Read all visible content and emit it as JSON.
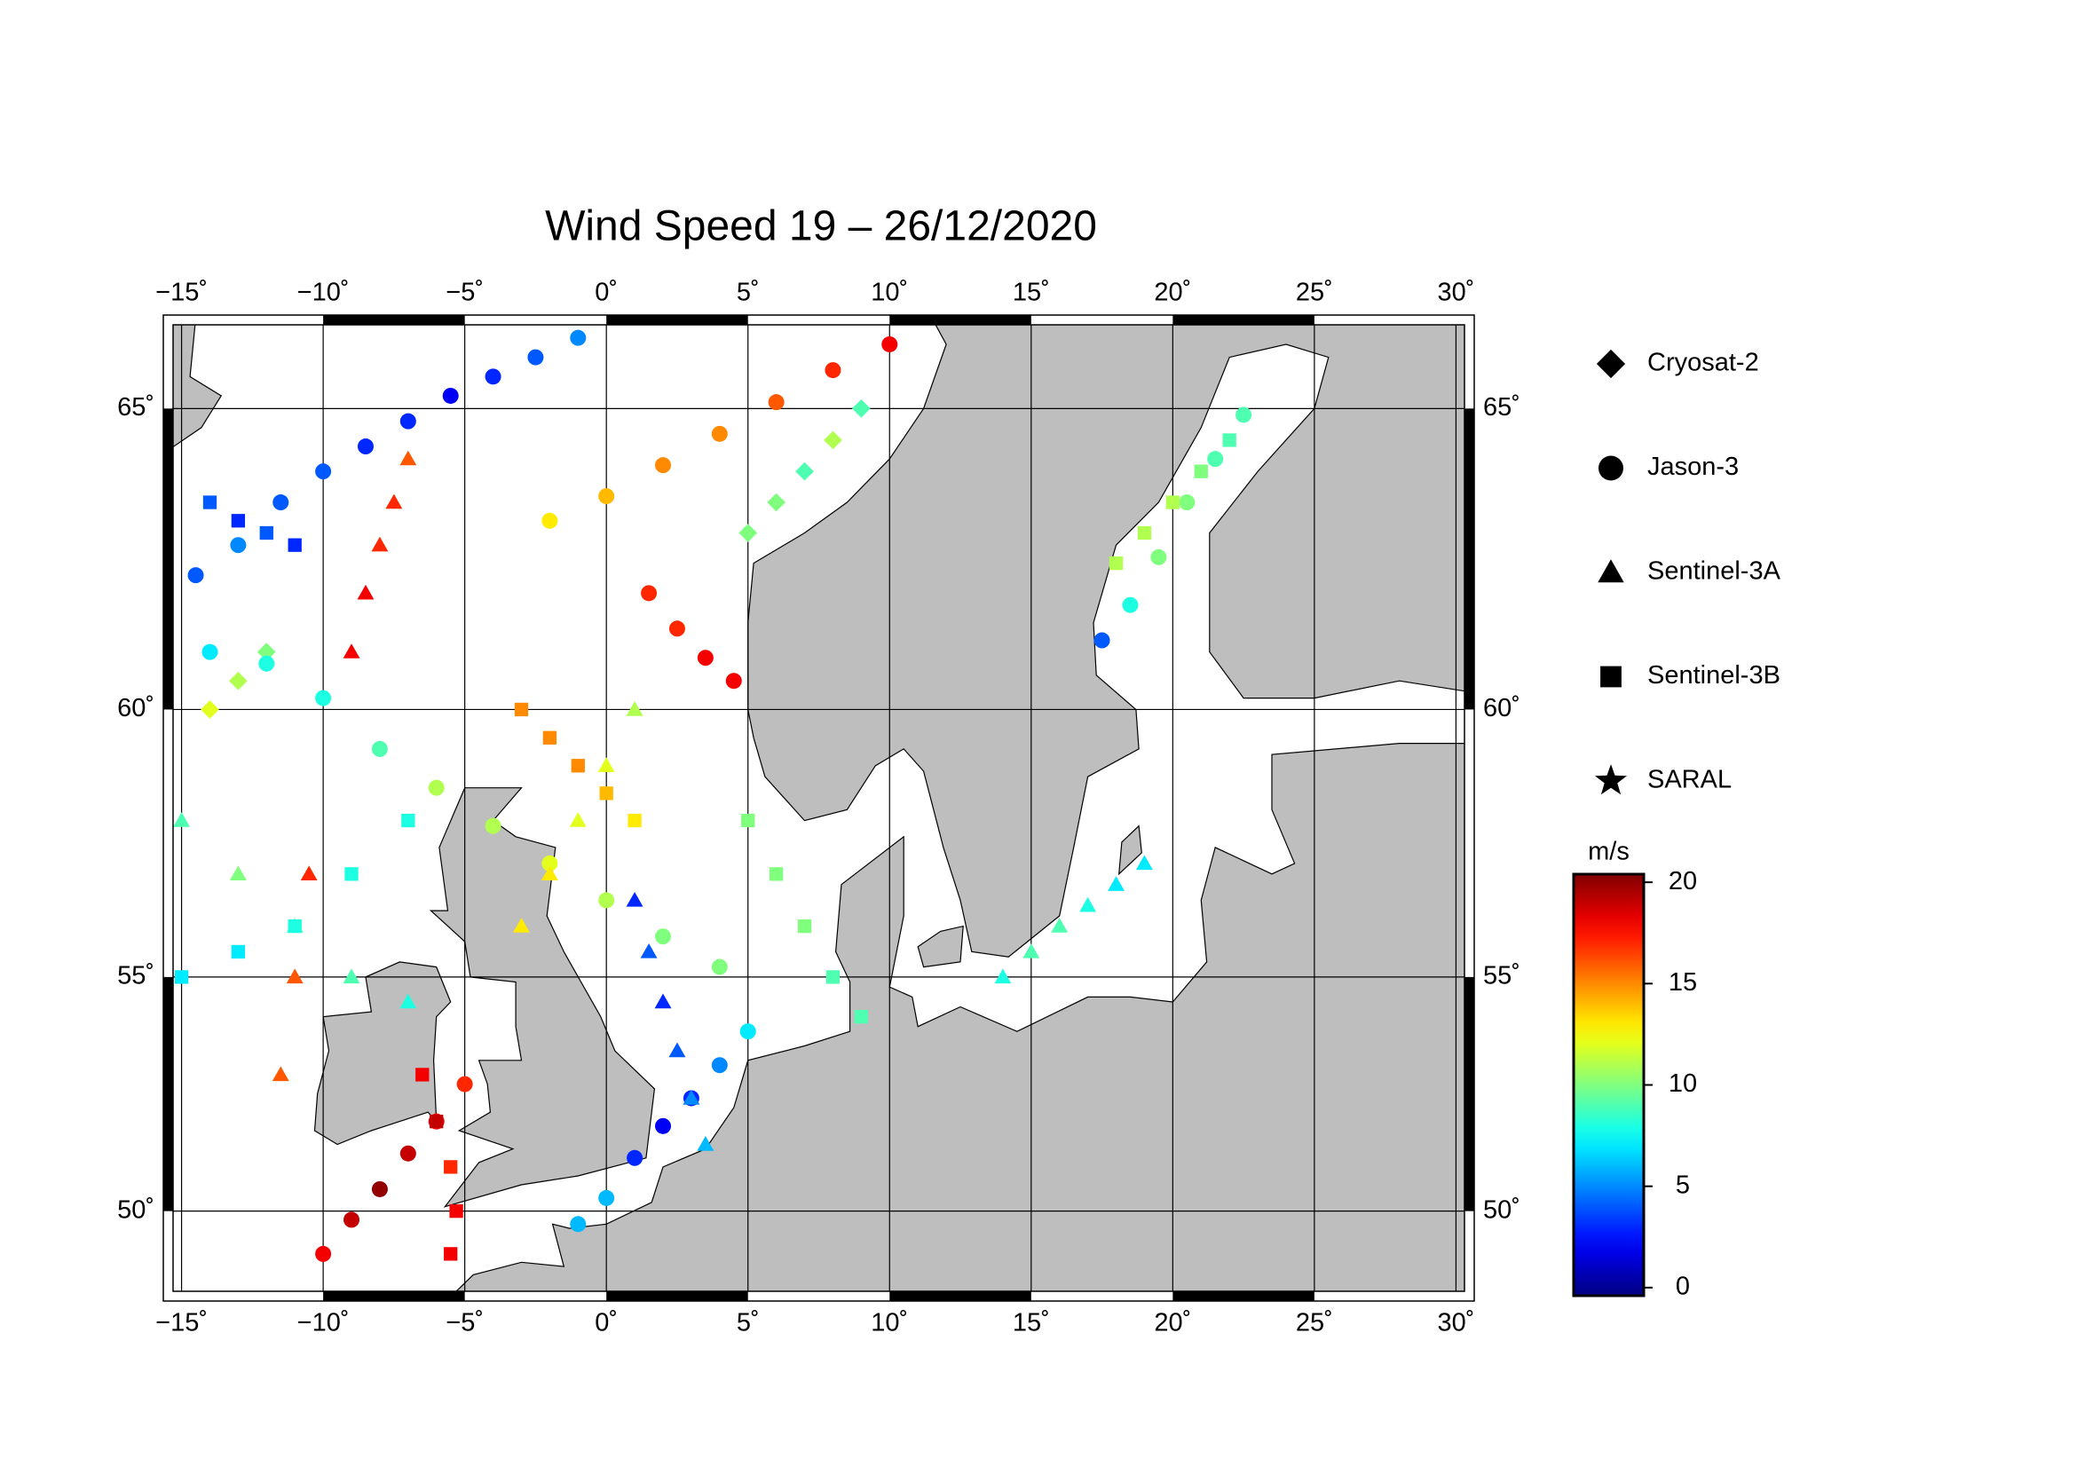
{
  "chart_data": {
    "type": "map",
    "title": "Wind Speed 19 – 26/12/2020",
    "xlim": [
      -15.3,
      30.3
    ],
    "ylim": [
      48.1,
      66.3
    ],
    "xticks": [
      {
        "value": -15,
        "label": "−15˚"
      },
      {
        "value": -10,
        "label": "−10˚"
      },
      {
        "value": -5,
        "label": "−5˚"
      },
      {
        "value": 0,
        "label": "0˚"
      },
      {
        "value": 5,
        "label": "5˚"
      },
      {
        "value": 10,
        "label": "10˚"
      },
      {
        "value": 15,
        "label": "15˚"
      },
      {
        "value": 20,
        "label": "20˚"
      },
      {
        "value": 25,
        "label": "25˚"
      },
      {
        "value": 30,
        "label": "30˚"
      }
    ],
    "yticks": [
      {
        "value": 50,
        "label": "50˚"
      },
      {
        "value": 55,
        "label": "55˚"
      },
      {
        "value": 60,
        "label": "60˚"
      },
      {
        "value": 65,
        "label": "65˚"
      }
    ],
    "grid": true,
    "colorbar": {
      "label": "m/s",
      "colormap": "jet",
      "lim": [
        -0.4,
        20.4
      ],
      "ticks": [
        0,
        5,
        10,
        15,
        20
      ]
    },
    "series": [
      {
        "name": "Cryosat-2",
        "marker": "diamond",
        "points": [
          [
            5,
            63,
            10
          ],
          [
            6,
            63.5,
            10
          ],
          [
            7,
            64,
            9
          ],
          [
            8,
            64.5,
            11
          ],
          [
            9,
            65,
            9
          ],
          [
            -14,
            60,
            12
          ],
          [
            -13,
            60.5,
            11
          ],
          [
            -12,
            61,
            10
          ]
        ]
      },
      {
        "name": "Jason-3",
        "marker": "circle",
        "points": [
          [
            -14.5,
            62.3,
            4
          ],
          [
            -13,
            62.8,
            5
          ],
          [
            -11.5,
            63.5,
            4
          ],
          [
            -10,
            64,
            4
          ],
          [
            -8.5,
            64.4,
            3
          ],
          [
            -7,
            64.8,
            3
          ],
          [
            -5.5,
            65.2,
            2
          ],
          [
            -4,
            65.5,
            3
          ],
          [
            -2.5,
            65.8,
            4
          ],
          [
            -1,
            66.1,
            5
          ],
          [
            -14,
            61,
            7
          ],
          [
            -12,
            60.8,
            8
          ],
          [
            -10,
            60.2,
            8
          ],
          [
            -8,
            59.3,
            9
          ],
          [
            -6,
            58.6,
            11
          ],
          [
            -4,
            57.9,
            11
          ],
          [
            -2,
            57.2,
            12
          ],
          [
            0,
            56.5,
            11
          ],
          [
            2,
            55.8,
            10
          ],
          [
            4,
            55.2,
            10
          ],
          [
            -2,
            63.2,
            13
          ],
          [
            0,
            63.6,
            14
          ],
          [
            2,
            64.1,
            15
          ],
          [
            4,
            64.6,
            15
          ],
          [
            6,
            65.1,
            16
          ],
          [
            8,
            65.6,
            17
          ],
          [
            10,
            66,
            18
          ],
          [
            1.5,
            62,
            17
          ],
          [
            2.5,
            61.4,
            17
          ],
          [
            3.5,
            60.9,
            18
          ],
          [
            4.5,
            60.5,
            18
          ],
          [
            -10,
            49,
            18
          ],
          [
            -9,
            49.8,
            19
          ],
          [
            -8,
            50.5,
            20
          ],
          [
            -7,
            51.3,
            19
          ],
          [
            -6,
            52,
            18
          ],
          [
            -5,
            52.8,
            17
          ],
          [
            17.5,
            61.2,
            4
          ],
          [
            18.5,
            61.8,
            8
          ],
          [
            19.5,
            62.6,
            10
          ],
          [
            20.5,
            63.5,
            10
          ],
          [
            21.5,
            64.2,
            9
          ],
          [
            22.5,
            64.9,
            9
          ],
          [
            -1,
            49.7,
            6
          ],
          [
            0,
            50.3,
            6
          ],
          [
            1,
            51.2,
            3
          ],
          [
            2,
            51.9,
            2
          ],
          [
            3,
            52.5,
            3
          ],
          [
            4,
            53.2,
            5
          ],
          [
            5,
            53.9,
            7
          ]
        ]
      },
      {
        "name": "Sentinel-3A",
        "marker": "triangle",
        "points": [
          [
            -9,
            61,
            18
          ],
          [
            -8.5,
            62,
            18
          ],
          [
            -8,
            62.8,
            17
          ],
          [
            -7.5,
            63.5,
            17
          ],
          [
            -7,
            64.2,
            16
          ],
          [
            -10.5,
            57,
            17
          ],
          [
            -11,
            55,
            16
          ],
          [
            -11.5,
            53,
            16
          ],
          [
            1,
            56.5,
            3
          ],
          [
            1.5,
            55.5,
            4
          ],
          [
            2,
            54.5,
            3
          ],
          [
            2.5,
            53.5,
            4
          ],
          [
            3,
            52.5,
            5
          ],
          [
            3.5,
            51.5,
            6
          ],
          [
            -15,
            58,
            9
          ],
          [
            -13,
            57,
            10
          ],
          [
            -11,
            56,
            9
          ],
          [
            -9,
            55,
            9
          ],
          [
            -7,
            54.5,
            8
          ],
          [
            14,
            55,
            8
          ],
          [
            15,
            55.5,
            9
          ],
          [
            16,
            56,
            9
          ],
          [
            17,
            56.4,
            8
          ],
          [
            18,
            56.8,
            7
          ],
          [
            19,
            57.2,
            7
          ],
          [
            -3,
            56,
            13
          ],
          [
            -2,
            57,
            13
          ],
          [
            -1,
            58,
            12
          ],
          [
            0,
            59,
            12
          ],
          [
            1,
            60,
            11
          ]
        ]
      },
      {
        "name": "Sentinel-3B",
        "marker": "square",
        "points": [
          [
            -5.5,
            49,
            18
          ],
          [
            -5.3,
            50,
            18
          ],
          [
            -5.5,
            51,
            17
          ],
          [
            -6,
            52,
            19
          ],
          [
            -6.5,
            53,
            18
          ],
          [
            -15,
            55,
            7
          ],
          [
            -13,
            55.5,
            7
          ],
          [
            -11,
            56,
            8
          ],
          [
            -9,
            57,
            8
          ],
          [
            -7,
            58,
            8
          ],
          [
            -3,
            60,
            15
          ],
          [
            -2,
            59.5,
            15
          ],
          [
            -1,
            59,
            15
          ],
          [
            0,
            58.5,
            14
          ],
          [
            1,
            58,
            13
          ],
          [
            5,
            58,
            10
          ],
          [
            6,
            57,
            10
          ],
          [
            7,
            56,
            10
          ],
          [
            8,
            55,
            9
          ],
          [
            9,
            54.2,
            9
          ],
          [
            18,
            62.5,
            11
          ],
          [
            19,
            63,
            11
          ],
          [
            20,
            63.5,
            11
          ],
          [
            21,
            64,
            10
          ],
          [
            22,
            64.5,
            9
          ],
          [
            -14,
            63.5,
            4
          ],
          [
            -13,
            63.2,
            3
          ],
          [
            -12,
            63,
            4
          ],
          [
            -11,
            62.8,
            3
          ]
        ]
      },
      {
        "name": "SARAL",
        "marker": "star",
        "points": []
      }
    ]
  }
}
